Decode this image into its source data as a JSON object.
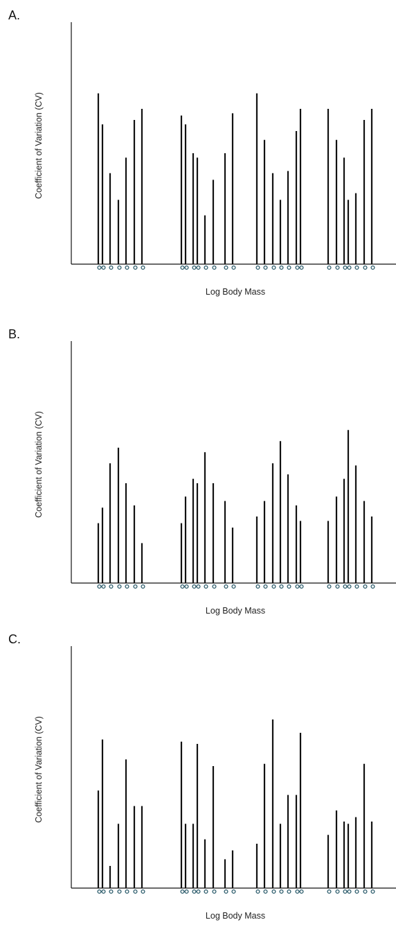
{
  "chart_data": [
    {
      "type": "bar",
      "title": "A.",
      "xlabel": "Log Body Mass",
      "ylabel": "Coefficient of Variation (CV)",
      "ylim": [
        0,
        1
      ],
      "grid": false,
      "groups": [
        {
          "values": [
            0.77,
            0.63,
            0.41,
            0.29,
            0.48,
            0.65,
            0.7
          ]
        },
        {
          "values": [
            0.67,
            0.63,
            0.5,
            0.48,
            0.22,
            0.38,
            0.5,
            0.68
          ]
        },
        {
          "values": [
            0.77,
            0.56,
            0.41,
            0.29,
            0.42,
            0.6,
            0.7
          ]
        },
        {
          "values": [
            0.7,
            0.56,
            0.48,
            0.29,
            0.32,
            0.65,
            0.7
          ]
        }
      ]
    },
    {
      "type": "bar",
      "title": "B.",
      "xlabel": "Log Body Mass",
      "ylabel": "Coefficient of Variation (CV)",
      "ylim": [
        0,
        1
      ],
      "grid": false,
      "groups": [
        {
          "values": [
            0.27,
            0.34,
            0.54,
            0.61,
            0.45,
            0.35,
            0.18
          ]
        },
        {
          "values": [
            0.27,
            0.39,
            0.47,
            0.45,
            0.59,
            0.45,
            0.37,
            0.25
          ]
        },
        {
          "values": [
            0.3,
            0.37,
            0.54,
            0.64,
            0.49,
            0.35,
            0.28
          ]
        },
        {
          "values": [
            0.28,
            0.39,
            0.47,
            0.69,
            0.53,
            0.37,
            0.3
          ]
        }
      ]
    },
    {
      "type": "bar",
      "title": "C.",
      "xlabel": "Log Body Mass",
      "ylabel": "Coefficient of Variation (CV)",
      "ylim": [
        0,
        1
      ],
      "grid": false,
      "groups": [
        {
          "values": [
            0.44,
            0.67,
            0.1,
            0.29,
            0.58,
            0.37,
            0.37
          ]
        },
        {
          "values": [
            0.66,
            0.29,
            0.29,
            0.65,
            0.22,
            0.55,
            0.13,
            0.17
          ]
        },
        {
          "values": [
            0.2,
            0.56,
            0.76,
            0.29,
            0.42,
            0.42,
            0.7
          ]
        },
        {
          "values": [
            0.24,
            0.35,
            0.3,
            0.29,
            0.32,
            0.56,
            0.3
          ]
        }
      ]
    }
  ],
  "colors": {
    "bar": "#111111",
    "axis": "#111111",
    "marker": "#2a5a6a"
  }
}
